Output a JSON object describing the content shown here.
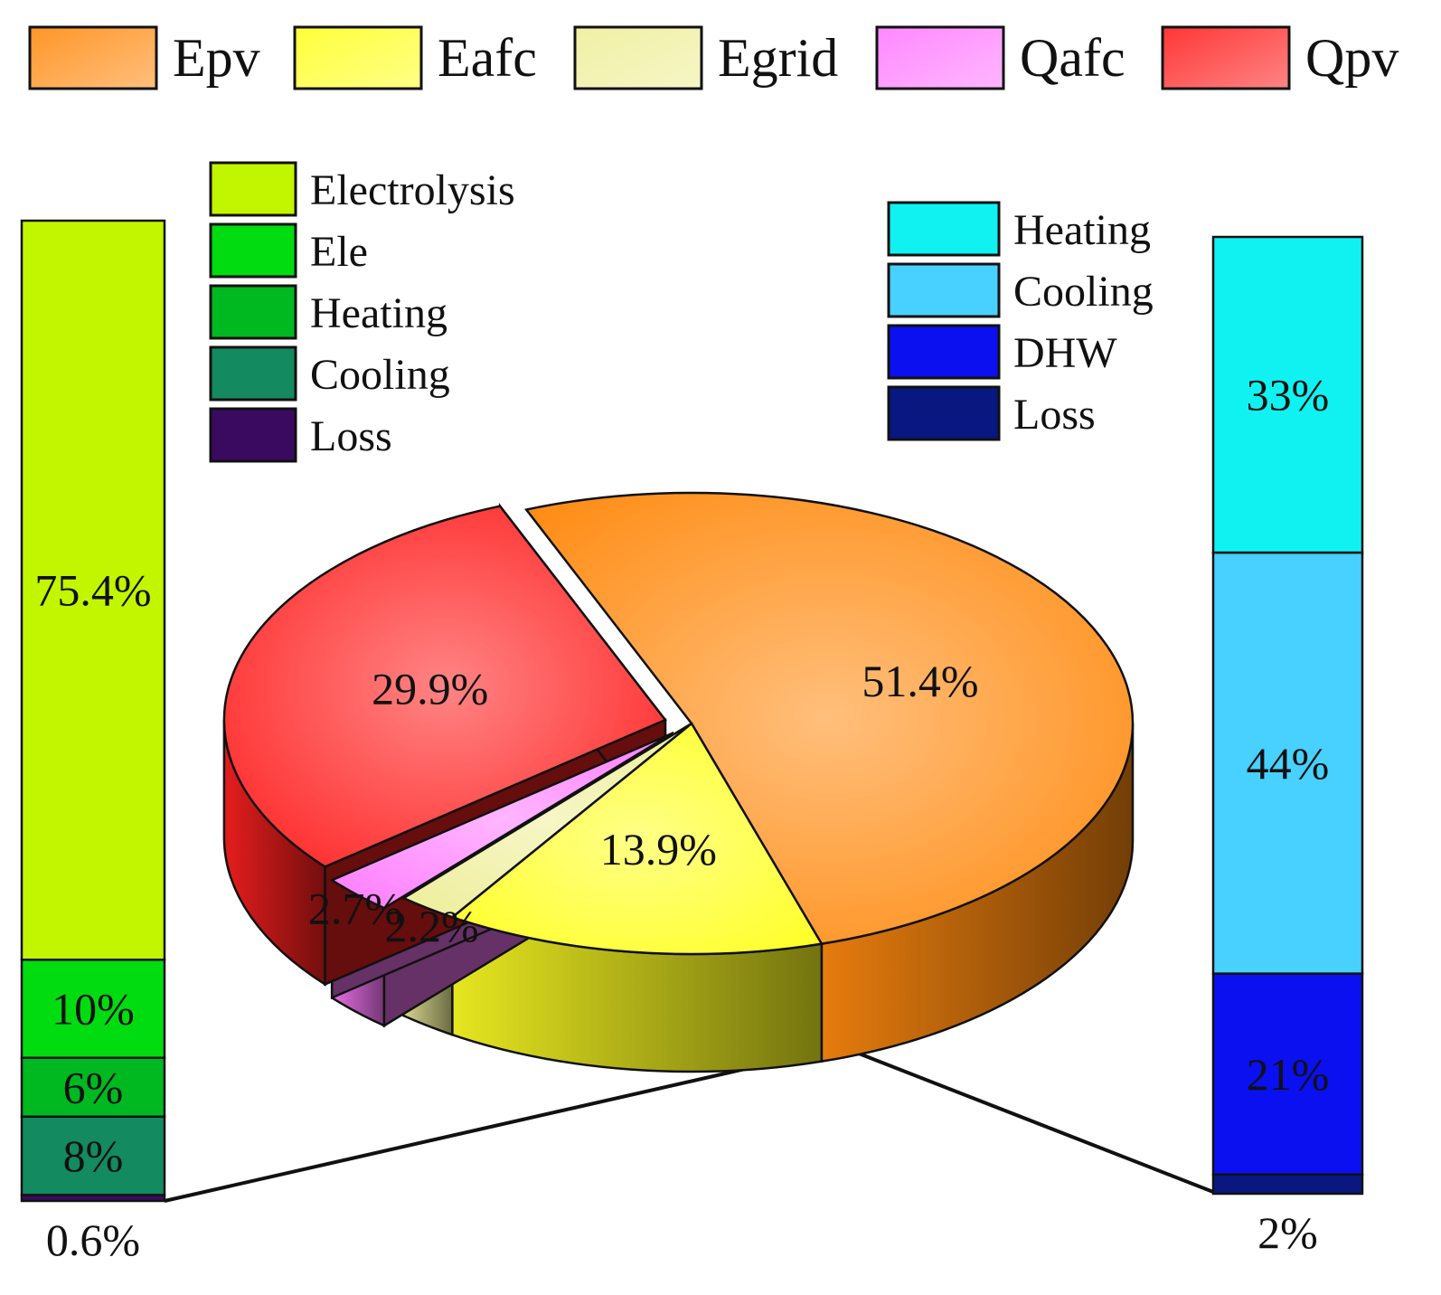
{
  "chart_data": {
    "type": "pie",
    "pie": {
      "slices": [
        {
          "name": "Epv",
          "value": 51.4,
          "label": "51.4%",
          "color": "#ff8a10"
        },
        {
          "name": "Eafc",
          "value": 13.9,
          "label": "13.9%",
          "color": "#ffff24"
        },
        {
          "name": "Egrid",
          "value": 2.2,
          "label": "2.2%",
          "color": "#eeee9a"
        },
        {
          "name": "Qafc",
          "value": 2.7,
          "label": "2.7%",
          "color": "#ff7bff"
        },
        {
          "name": "Qpv",
          "value": 29.9,
          "label": "29.9%",
          "color": "#ff2020"
        }
      ]
    },
    "left_bar": {
      "source": "Epv",
      "segments": [
        {
          "name": "Electrolysis",
          "value": 75.4,
          "label": "75.4%",
          "color": "#c2f500"
        },
        {
          "name": "Ele",
          "value": 10,
          "label": "10%",
          "color": "#00dc10"
        },
        {
          "name": "Heating",
          "value": 6,
          "label": "6%",
          "color": "#00b820"
        },
        {
          "name": "Cooling",
          "value": 8,
          "label": "8%",
          "color": "#138a60"
        },
        {
          "name": "Loss",
          "value": 0.6,
          "label": "0.6%",
          "color": "#3a0a60"
        }
      ]
    },
    "right_bar": {
      "source": "Qpv",
      "segments": [
        {
          "name": "Heating",
          "value": 33,
          "label": "33%",
          "color": "#10f2f2"
        },
        {
          "name": "Cooling",
          "value": 44,
          "label": "44%",
          "color": "#48d0ff"
        },
        {
          "name": "DHW",
          "value": 21,
          "label": "21%",
          "color": "#0a10f0"
        },
        {
          "name": "Loss",
          "value": 2,
          "label": "2%",
          "color": "#081880"
        }
      ]
    }
  }
}
